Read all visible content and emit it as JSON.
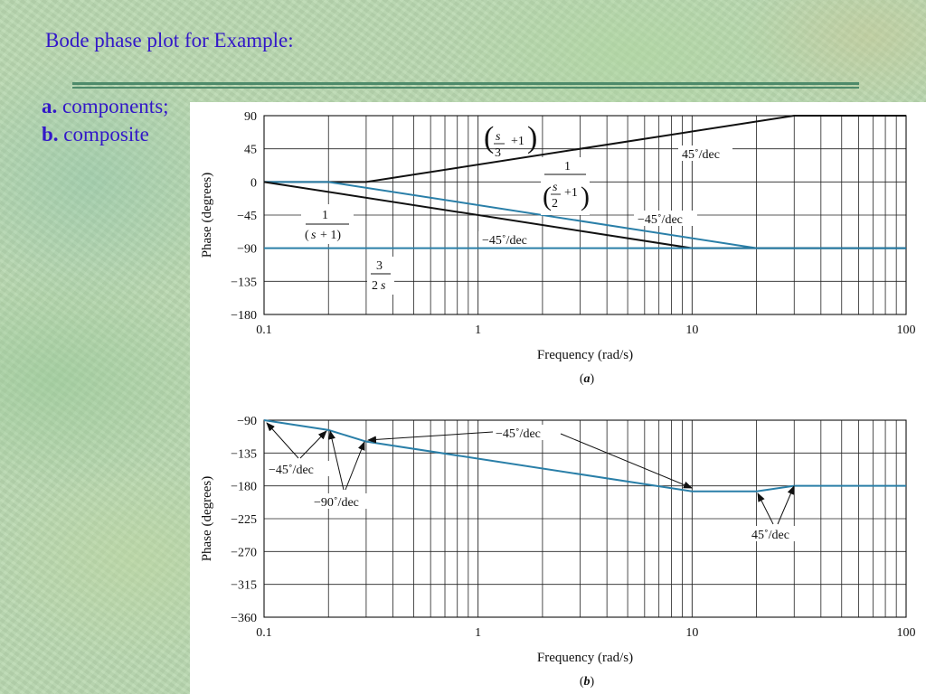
{
  "slide": {
    "title": "Bode phase plot for  Example:",
    "item_a_letter": "a.",
    "item_a_text": " components;",
    "item_b_letter": "b.",
    "item_b_text": " composite"
  },
  "colors": {
    "title_text": "#3318c8",
    "black_line": "#111111",
    "blue_line": "#2a7fa8"
  },
  "chart_data": [
    {
      "type": "line",
      "caption": "(a)",
      "xlabel": "Frequency (rad/s)",
      "ylabel": "Phase (degrees)",
      "xscale": "log",
      "xlim": [
        0.1,
        100
      ],
      "ylim": [
        -180,
        90
      ],
      "xticks": [
        0.1,
        1,
        10,
        100
      ],
      "xtick_labels": [
        "0.1",
        "1",
        "10",
        "100"
      ],
      "yticks": [
        90,
        45,
        0,
        -45,
        -90,
        -135,
        -180
      ],
      "ytick_labels": [
        "90",
        "45",
        "0",
        "−45",
        "−90",
        "−135",
        "−180"
      ],
      "grid": true,
      "series": [
        {
          "color": "#111111",
          "x": [
            0.1,
            0.3,
            30,
            100
          ],
          "y": [
            0,
            0,
            90,
            90
          ]
        },
        {
          "color": "#2a7fa8",
          "x": [
            0.1,
            0.2,
            20,
            100
          ],
          "y": [
            0,
            0,
            -90,
            -90
          ]
        },
        {
          "color": "#111111",
          "x": [
            0.1,
            10,
            100
          ],
          "y": [
            0,
            -90,
            -90
          ]
        },
        {
          "color": "#2a7fa8",
          "x": [
            0.1,
            100
          ],
          "y": [
            -90,
            -90
          ]
        }
      ],
      "annotations": [
        {
          "text": "45˚/dec",
          "x": 14,
          "y": 44
        },
        {
          "text": "−45˚/dec",
          "x": 8,
          "y": -45
        },
        {
          "text": "−45˚/dec",
          "x": 1.6,
          "y": -74
        }
      ]
    },
    {
      "type": "line",
      "caption": "(b)",
      "xlabel": "Frequency (rad/s)",
      "ylabel": "Phase (degrees)",
      "xscale": "log",
      "xlim": [
        0.1,
        100
      ],
      "ylim": [
        -360,
        -90
      ],
      "xticks": [
        0.1,
        1,
        10,
        100
      ],
      "xtick_labels": [
        "0.1",
        "1",
        "10",
        "100"
      ],
      "yticks": [
        -90,
        -135,
        -180,
        -225,
        -270,
        -315,
        -360
      ],
      "ytick_labels": [
        "−90",
        "−135",
        "−180",
        "−225",
        "−270",
        "−315",
        "−360"
      ],
      "grid": true,
      "series": [
        {
          "color": "#2a7fa8",
          "x": [
            0.1,
            0.2,
            0.3,
            10,
            20,
            30,
            100
          ],
          "y": [
            -90,
            -103.5,
            -119.3,
            -187.5,
            -187.5,
            -180,
            -180
          ]
        }
      ],
      "annotations": [
        {
          "text": "−45˚/dec"
        },
        {
          "text": "−90˚/dec"
        },
        {
          "text": "−45˚/dec"
        },
        {
          "text": "45˚/dec"
        }
      ]
    }
  ]
}
